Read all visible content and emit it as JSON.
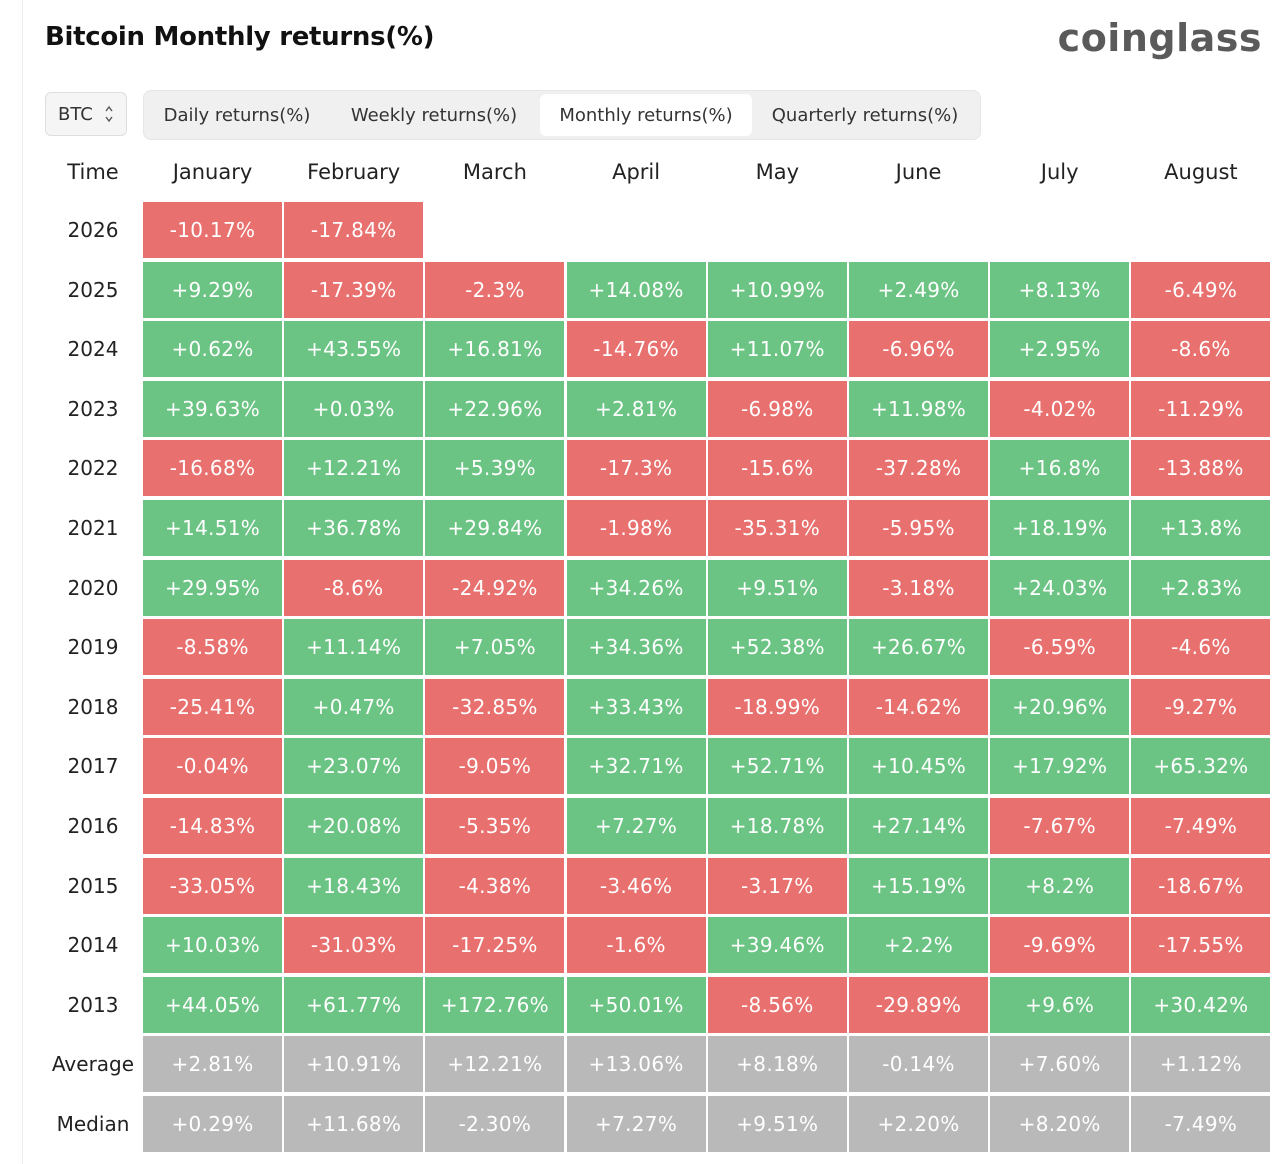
{
  "title": "Bitcoin Monthly returns(%)",
  "logo": "coinglass",
  "selector": {
    "value": "BTC",
    "icon": "chevron-up-down-icon"
  },
  "tabs": [
    {
      "label": "Daily returns(%)",
      "active": false
    },
    {
      "label": "Weekly returns(%)",
      "active": false
    },
    {
      "label": "Monthly returns(%)",
      "active": true
    },
    {
      "label": "Quarterly returns(%)",
      "active": false
    }
  ],
  "colors": {
    "positive": "#6cc484",
    "negative": "#e8706e",
    "summary": "#b9b9b9"
  },
  "chart_data": {
    "type": "table",
    "title": "Bitcoin Monthly returns(%)",
    "row_header": "Time",
    "columns": [
      "January",
      "February",
      "March",
      "April",
      "May",
      "June",
      "July",
      "August"
    ],
    "rows": [
      {
        "label": "2026",
        "values": [
          "-10.17%",
          "-17.84%",
          "",
          "",
          "",
          "",
          "",
          ""
        ]
      },
      {
        "label": "2025",
        "values": [
          "+9.29%",
          "-17.39%",
          "-2.3%",
          "+14.08%",
          "+10.99%",
          "+2.49%",
          "+8.13%",
          "-6.49%"
        ]
      },
      {
        "label": "2024",
        "values": [
          "+0.62%",
          "+43.55%",
          "+16.81%",
          "-14.76%",
          "+11.07%",
          "-6.96%",
          "+2.95%",
          "-8.6%"
        ]
      },
      {
        "label": "2023",
        "values": [
          "+39.63%",
          "+0.03%",
          "+22.96%",
          "+2.81%",
          "-6.98%",
          "+11.98%",
          "-4.02%",
          "-11.29%"
        ]
      },
      {
        "label": "2022",
        "values": [
          "-16.68%",
          "+12.21%",
          "+5.39%",
          "-17.3%",
          "-15.6%",
          "-37.28%",
          "+16.8%",
          "-13.88%"
        ]
      },
      {
        "label": "2021",
        "values": [
          "+14.51%",
          "+36.78%",
          "+29.84%",
          "-1.98%",
          "-35.31%",
          "-5.95%",
          "+18.19%",
          "+13.8%"
        ]
      },
      {
        "label": "2020",
        "values": [
          "+29.95%",
          "-8.6%",
          "-24.92%",
          "+34.26%",
          "+9.51%",
          "-3.18%",
          "+24.03%",
          "+2.83%"
        ]
      },
      {
        "label": "2019",
        "values": [
          "-8.58%",
          "+11.14%",
          "+7.05%",
          "+34.36%",
          "+52.38%",
          "+26.67%",
          "-6.59%",
          "-4.6%"
        ]
      },
      {
        "label": "2018",
        "values": [
          "-25.41%",
          "+0.47%",
          "-32.85%",
          "+33.43%",
          "-18.99%",
          "-14.62%",
          "+20.96%",
          "-9.27%"
        ]
      },
      {
        "label": "2017",
        "values": [
          "-0.04%",
          "+23.07%",
          "-9.05%",
          "+32.71%",
          "+52.71%",
          "+10.45%",
          "+17.92%",
          "+65.32%"
        ]
      },
      {
        "label": "2016",
        "values": [
          "-14.83%",
          "+20.08%",
          "-5.35%",
          "+7.27%",
          "+18.78%",
          "+27.14%",
          "-7.67%",
          "-7.49%"
        ]
      },
      {
        "label": "2015",
        "values": [
          "-33.05%",
          "+18.43%",
          "-4.38%",
          "-3.46%",
          "-3.17%",
          "+15.19%",
          "+8.2%",
          "-18.67%"
        ]
      },
      {
        "label": "2014",
        "values": [
          "+10.03%",
          "-31.03%",
          "-17.25%",
          "-1.6%",
          "+39.46%",
          "+2.2%",
          "-9.69%",
          "-17.55%"
        ]
      },
      {
        "label": "2013",
        "values": [
          "+44.05%",
          "+61.77%",
          "+172.76%",
          "+50.01%",
          "-8.56%",
          "-29.89%",
          "+9.6%",
          "+30.42%"
        ]
      }
    ],
    "summary_rows": [
      {
        "label": "Average",
        "values": [
          "+2.81%",
          "+10.91%",
          "+12.21%",
          "+13.06%",
          "+8.18%",
          "-0.14%",
          "+7.60%",
          "+1.12%"
        ]
      },
      {
        "label": "Median",
        "values": [
          "+0.29%",
          "+11.68%",
          "-2.30%",
          "+7.27%",
          "+9.51%",
          "+2.20%",
          "+8.20%",
          "-7.49%"
        ]
      }
    ]
  }
}
